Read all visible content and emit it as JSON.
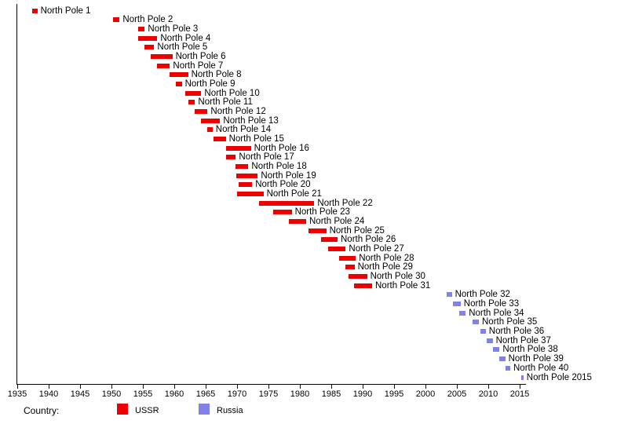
{
  "chart_data": {
    "type": "gantt",
    "title": "",
    "xlabel": "",
    "ylabel": "",
    "x_axis": {
      "min": 1935,
      "max": 2016,
      "tick_interval": 5,
      "ticks": [
        "1935",
        "1940",
        "1945",
        "1950",
        "1955",
        "1960",
        "1965",
        "1970",
        "1975",
        "1980",
        "1985",
        "1990",
        "1995",
        "2000",
        "2005",
        "2010",
        "2015"
      ]
    },
    "legend": {
      "title": "Country:",
      "position": "bottom",
      "entries": [
        {
          "label": "USSR",
          "color": "#ee0000"
        },
        {
          "label": "Russia",
          "color": "#8181e8"
        }
      ]
    },
    "series": [
      {
        "label": "North Pole 1",
        "country": "USSR",
        "start": 1937.4,
        "end": 1938.2
      },
      {
        "label": "North Pole 2",
        "country": "USSR",
        "start": 1950.3,
        "end": 1951.3
      },
      {
        "label": "North Pole 3",
        "country": "USSR",
        "start": 1954.3,
        "end": 1955.3
      },
      {
        "label": "North Pole 4",
        "country": "USSR",
        "start": 1954.3,
        "end": 1957.3
      },
      {
        "label": "North Pole 5",
        "country": "USSR",
        "start": 1955.3,
        "end": 1956.8
      },
      {
        "label": "North Pole 6",
        "country": "USSR",
        "start": 1956.3,
        "end": 1959.7
      },
      {
        "label": "North Pole 7",
        "country": "USSR",
        "start": 1957.3,
        "end": 1959.3
      },
      {
        "label": "North Pole 8",
        "country": "USSR",
        "start": 1959.3,
        "end": 1962.2
      },
      {
        "label": "North Pole 9",
        "country": "USSR",
        "start": 1960.3,
        "end": 1961.2
      },
      {
        "label": "North Pole 10",
        "country": "USSR",
        "start": 1961.8,
        "end": 1964.3
      },
      {
        "label": "North Pole 11",
        "country": "USSR",
        "start": 1962.3,
        "end": 1963.3
      },
      {
        "label": "North Pole 12",
        "country": "USSR",
        "start": 1963.3,
        "end": 1965.3
      },
      {
        "label": "North Pole 13",
        "country": "USSR",
        "start": 1964.3,
        "end": 1967.3
      },
      {
        "label": "North Pole 14",
        "country": "USSR",
        "start": 1965.3,
        "end": 1966.1
      },
      {
        "label": "North Pole 15",
        "country": "USSR",
        "start": 1966.3,
        "end": 1968.2
      },
      {
        "label": "North Pole 16",
        "country": "USSR",
        "start": 1968.3,
        "end": 1972.2
      },
      {
        "label": "North Pole 17",
        "country": "USSR",
        "start": 1968.3,
        "end": 1969.8
      },
      {
        "label": "North Pole 18",
        "country": "USSR",
        "start": 1969.8,
        "end": 1971.8
      },
      {
        "label": "North Pole 19",
        "country": "USSR",
        "start": 1969.9,
        "end": 1973.3
      },
      {
        "label": "North Pole 20",
        "country": "USSR",
        "start": 1970.3,
        "end": 1972.4
      },
      {
        "label": "North Pole 21",
        "country": "USSR",
        "start": 1970.0,
        "end": 1974.2
      },
      {
        "label": "North Pole 22",
        "country": "USSR",
        "start": 1973.5,
        "end": 1982.3
      },
      {
        "label": "North Pole 23",
        "country": "USSR",
        "start": 1975.7,
        "end": 1978.7
      },
      {
        "label": "North Pole 24",
        "country": "USSR",
        "start": 1978.3,
        "end": 1981.0
      },
      {
        "label": "North Pole 25",
        "country": "USSR",
        "start": 1981.4,
        "end": 1984.2
      },
      {
        "label": "North Pole 26",
        "country": "USSR",
        "start": 1983.4,
        "end": 1986.0
      },
      {
        "label": "North Pole 27",
        "country": "USSR",
        "start": 1984.5,
        "end": 1987.3
      },
      {
        "label": "North Pole 28",
        "country": "USSR",
        "start": 1986.2,
        "end": 1988.9
      },
      {
        "label": "North Pole 29",
        "country": "USSR",
        "start": 1987.3,
        "end": 1988.7
      },
      {
        "label": "North Pole 30",
        "country": "USSR",
        "start": 1987.8,
        "end": 1990.7
      },
      {
        "label": "North Pole 31",
        "country": "USSR",
        "start": 1988.6,
        "end": 1991.5
      },
      {
        "label": "North Pole 32",
        "country": "Russia",
        "start": 2003.4,
        "end": 2004.2
      },
      {
        "label": "North Pole 33",
        "country": "Russia",
        "start": 2004.4,
        "end": 2005.6
      },
      {
        "label": "North Pole 34",
        "country": "Russia",
        "start": 2005.4,
        "end": 2006.4
      },
      {
        "label": "North Pole 35",
        "country": "Russia",
        "start": 2007.5,
        "end": 2008.5
      },
      {
        "label": "North Pole 36",
        "country": "Russia",
        "start": 2008.7,
        "end": 2009.6
      },
      {
        "label": "North Pole 37",
        "country": "Russia",
        "start": 2009.7,
        "end": 2010.7
      },
      {
        "label": "North Pole 38",
        "country": "Russia",
        "start": 2010.8,
        "end": 2011.8
      },
      {
        "label": "North Pole 39",
        "country": "Russia",
        "start": 2011.8,
        "end": 2012.7
      },
      {
        "label": "North Pole 40",
        "country": "Russia",
        "start": 2012.8,
        "end": 2013.5
      },
      {
        "label": "North Pole 2015",
        "country": "Russia",
        "start": 2015.3,
        "end": 2015.6
      }
    ]
  }
}
